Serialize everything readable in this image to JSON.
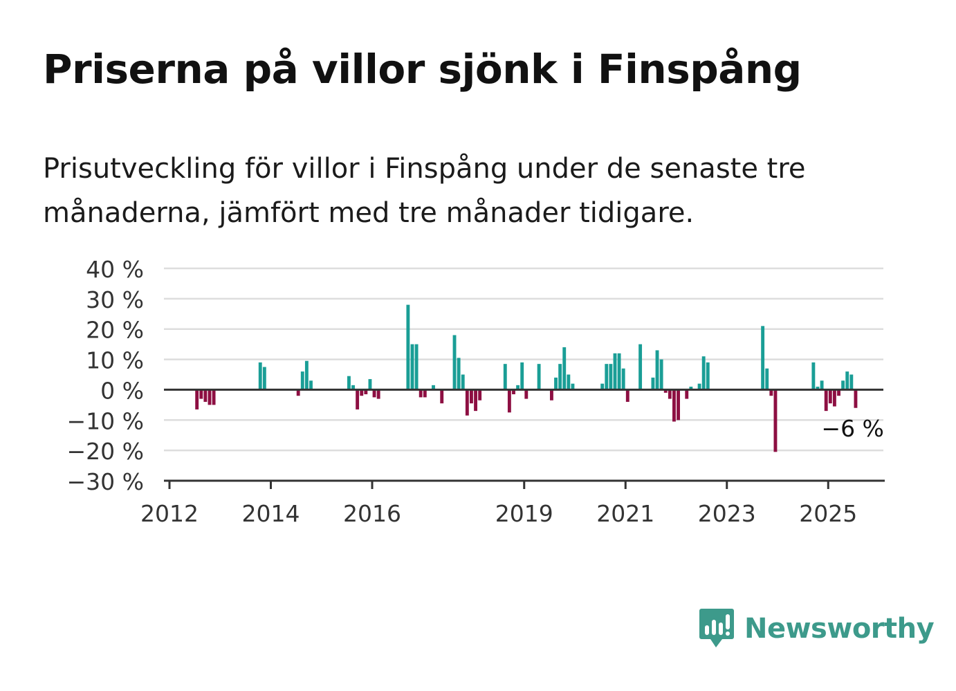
{
  "header": {
    "title": "Priserna på villor sjönk i Finspång",
    "subtitle": "Prisutveckling för villor i Finspång under de senaste tre månaderna, jämfört med tre månader tidigare."
  },
  "brand": {
    "name": "Newsworthy",
    "icon": "bar-chart-speech-bubble-icon",
    "color": "#3d9a8b"
  },
  "colors": {
    "positive": "#1a9e96",
    "negative": "#8d0f42",
    "grid": "#dddddd",
    "axis": "#333333"
  },
  "chart_data": {
    "type": "bar",
    "x_axis": {
      "type": "time",
      "range": [
        "2012-01",
        "2026-01"
      ],
      "ticks": [
        "2012",
        "2014",
        "2016",
        "2019",
        "2021",
        "2023",
        "2025"
      ]
    },
    "y_axis": {
      "range": [
        -30,
        40
      ],
      "ticks": [
        "40 %",
        "30 %",
        "20 %",
        "10 %",
        "0 %",
        "−10 %",
        "−20 %",
        "−30 %"
      ]
    },
    "grid": true,
    "series": [
      {
        "values": [
          [
            "2012-07",
            -6.5
          ],
          [
            "2012-08",
            -3
          ],
          [
            "2012-09",
            -4
          ],
          [
            "2012-10",
            -5
          ],
          [
            "2012-11",
            -5
          ],
          [
            "2013-10",
            9
          ],
          [
            "2013-11",
            7.5
          ],
          [
            "2014-07",
            -2
          ],
          [
            "2014-08",
            6
          ],
          [
            "2014-09",
            9.5
          ],
          [
            "2014-10",
            3
          ],
          [
            "2015-07",
            4.5
          ],
          [
            "2015-08",
            1.5
          ],
          [
            "2015-09",
            -6.5
          ],
          [
            "2015-10",
            -2
          ],
          [
            "2015-11",
            -1.5
          ],
          [
            "2015-12",
            3.5
          ],
          [
            "2016-01",
            -2.5
          ],
          [
            "2016-02",
            -3
          ],
          [
            "2016-09",
            28
          ],
          [
            "2016-10",
            15
          ],
          [
            "2016-11",
            15
          ],
          [
            "2016-12",
            -2.5
          ],
          [
            "2017-01",
            -2.5
          ],
          [
            "2017-03",
            1.5
          ],
          [
            "2017-05",
            -4.5
          ],
          [
            "2017-08",
            18
          ],
          [
            "2017-09",
            10.5
          ],
          [
            "2017-10",
            5
          ],
          [
            "2017-11",
            -8.5
          ],
          [
            "2017-12",
            -4.5
          ],
          [
            "2018-01",
            -7
          ],
          [
            "2018-02",
            -3.5
          ],
          [
            "2018-08",
            8.5
          ],
          [
            "2018-09",
            -7.5
          ],
          [
            "2018-10",
            -1.5
          ],
          [
            "2018-11",
            1.5
          ],
          [
            "2018-12",
            9
          ],
          [
            "2019-01",
            -3
          ],
          [
            "2019-04",
            8.5
          ],
          [
            "2019-07",
            -3.5
          ],
          [
            "2019-08",
            4
          ],
          [
            "2019-09",
            8.5
          ],
          [
            "2019-10",
            14
          ],
          [
            "2019-11",
            5
          ],
          [
            "2019-12",
            2
          ],
          [
            "2020-07",
            2
          ],
          [
            "2020-08",
            8.5
          ],
          [
            "2020-09",
            8.5
          ],
          [
            "2020-10",
            12
          ],
          [
            "2020-11",
            12
          ],
          [
            "2020-12",
            7
          ],
          [
            "2021-01",
            -4
          ],
          [
            "2021-04",
            15
          ],
          [
            "2021-07",
            4
          ],
          [
            "2021-08",
            13
          ],
          [
            "2021-09",
            10
          ],
          [
            "2021-10",
            -1
          ],
          [
            "2021-11",
            -3
          ],
          [
            "2021-12",
            -10.5
          ],
          [
            "2022-01",
            -10
          ],
          [
            "2022-03",
            -3
          ],
          [
            "2022-04",
            1
          ],
          [
            "2022-06",
            2
          ],
          [
            "2022-07",
            11
          ],
          [
            "2022-08",
            9
          ],
          [
            "2023-09",
            21
          ],
          [
            "2023-10",
            7
          ],
          [
            "2023-11",
            -2
          ],
          [
            "2023-12",
            -20.5
          ],
          [
            "2024-09",
            9
          ],
          [
            "2024-10",
            1
          ],
          [
            "2024-11",
            3
          ],
          [
            "2024-12",
            -7
          ],
          [
            "2025-01",
            -4.5
          ],
          [
            "2025-02",
            -5.5
          ],
          [
            "2025-03",
            -2
          ],
          [
            "2025-04",
            3
          ],
          [
            "2025-05",
            6
          ],
          [
            "2025-06",
            5
          ],
          [
            "2025-07",
            -6
          ]
        ]
      }
    ],
    "annotations": [
      {
        "text": "−6 %",
        "target": "2025-07"
      }
    ]
  }
}
